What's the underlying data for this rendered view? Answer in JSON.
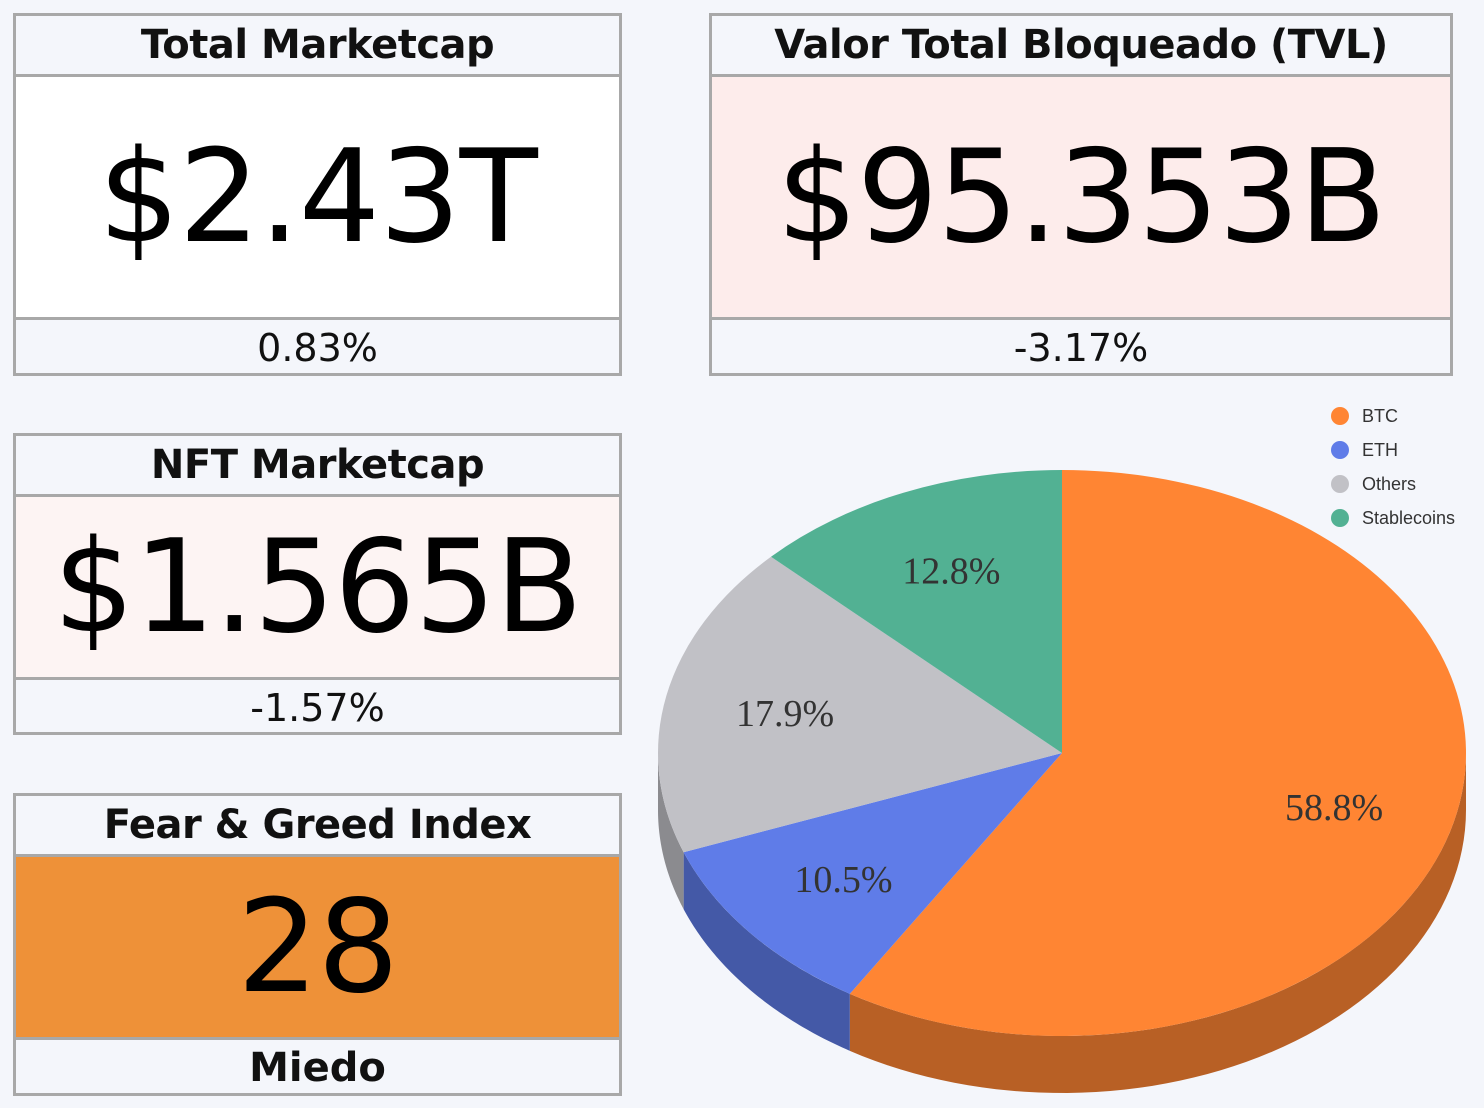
{
  "cards": {
    "total_marketcap": {
      "title": "Total Marketcap",
      "value": "$2.43T",
      "change": "0.83%",
      "bg": "#ffffff"
    },
    "tvl": {
      "title": "Valor Total Bloqueado (TVL)",
      "value": "$95.353B",
      "change": "-3.17%",
      "bg": "#fdeceb"
    },
    "nft_marketcap": {
      "title": "NFT Marketcap",
      "value": "$1.565B",
      "change": "-1.57%",
      "bg": "#fdf4f3"
    },
    "fear_greed": {
      "title": "Fear & Greed Index",
      "value": "28",
      "label": "Miedo",
      "bg": "#ee9138"
    }
  },
  "chart_data": {
    "type": "pie",
    "title": "",
    "categories": [
      "BTC",
      "ETH",
      "Others",
      "Stablecoins"
    ],
    "values": [
      58.8,
      10.5,
      17.9,
      12.8
    ],
    "labels": [
      "58.8%",
      "10.5%",
      "17.9%",
      "12.8%"
    ],
    "colors": [
      "#ff8533",
      "#5f7ce8",
      "#c1c1c6",
      "#52b193"
    ],
    "legend_position": "top-right",
    "style": "3d"
  }
}
